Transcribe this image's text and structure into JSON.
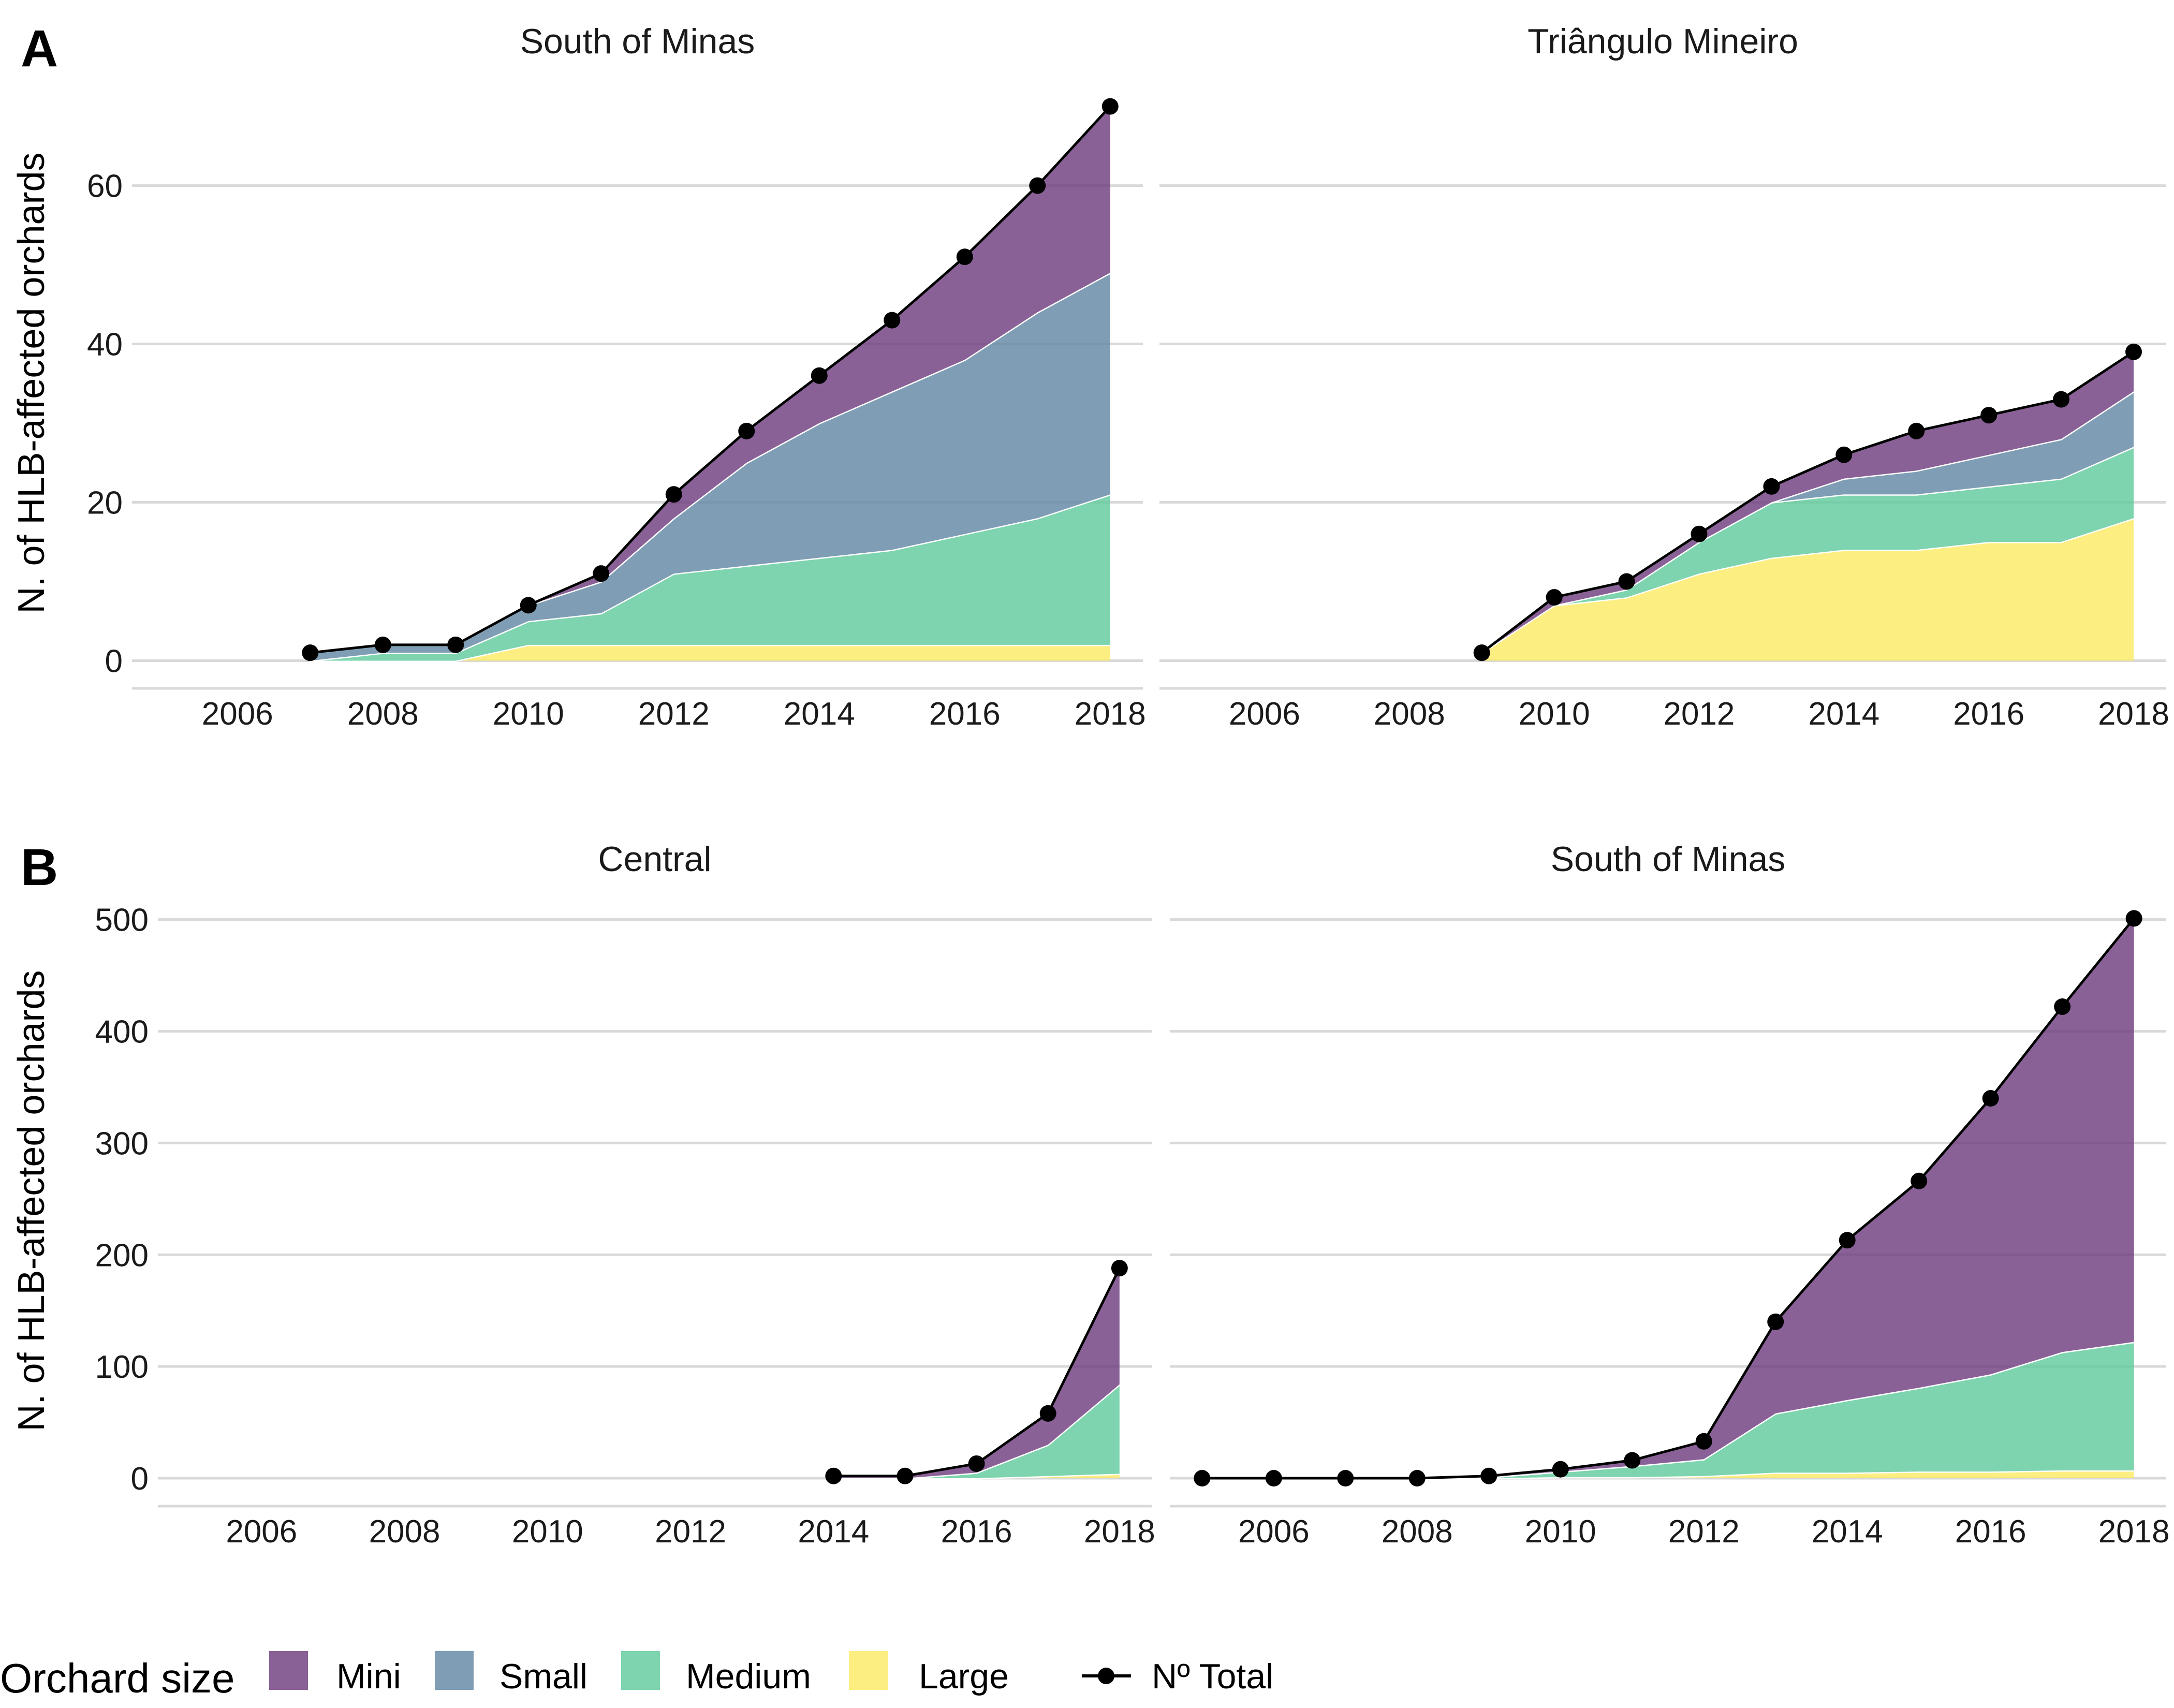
{
  "legend": {
    "title": "Orchard size",
    "items": [
      {
        "key": "mini",
        "label": "Mini",
        "color": "#6B3A7D"
      },
      {
        "key": "small",
        "label": "Small",
        "color": "#5F86A3"
      },
      {
        "key": "medium",
        "label": "Medium",
        "color": "#5CC99A"
      },
      {
        "key": "large",
        "label": "Large",
        "color": "#FBEA61"
      }
    ],
    "total_label": "Nº Total",
    "total_color": "#000000"
  },
  "chart_data": [
    {
      "type": "area",
      "tag": "A",
      "title": "South of Minas",
      "ylabel": "N. of HLB-affected orchards",
      "xlim": [
        2005,
        2018
      ],
      "xticks": [
        2006,
        2008,
        2010,
        2012,
        2014,
        2016,
        2018
      ],
      "ylim": [
        -3.5,
        72
      ],
      "yticks": [
        0,
        20,
        40,
        60
      ],
      "stacked": true,
      "x": [
        2007,
        2008,
        2009,
        2010,
        2011,
        2012,
        2013,
        2014,
        2015,
        2016,
        2017,
        2018
      ],
      "series": [
        {
          "name": "Large",
          "values": [
            0,
            0,
            0,
            2,
            2,
            2,
            2,
            2,
            2,
            2,
            2,
            2
          ]
        },
        {
          "name": "Medium",
          "values": [
            0,
            1,
            1,
            3,
            4,
            9,
            10,
            11,
            12,
            14,
            16,
            19
          ]
        },
        {
          "name": "Small",
          "values": [
            1,
            1,
            1,
            2,
            4,
            7,
            13,
            17,
            20,
            22,
            26,
            28
          ]
        },
        {
          "name": "Mini",
          "values": [
            0,
            0,
            0,
            0,
            1,
            3,
            4,
            6,
            9,
            13,
            16,
            21
          ]
        }
      ],
      "total": [
        1,
        2,
        2,
        7,
        11,
        21,
        29,
        36,
        43,
        51,
        60,
        70
      ]
    },
    {
      "type": "area",
      "tag": "",
      "title": "Triângulo Mineiro",
      "ylabel": "",
      "xlim": [
        2005,
        2018
      ],
      "xticks": [
        2006,
        2008,
        2010,
        2012,
        2014,
        2016,
        2018
      ],
      "ylim": [
        -3.5,
        72
      ],
      "yticks": [
        0,
        20,
        40,
        60
      ],
      "stacked": true,
      "x": [
        2009,
        2010,
        2011,
        2012,
        2013,
        2014,
        2015,
        2016,
        2017,
        2018
      ],
      "series": [
        {
          "name": "Large",
          "values": [
            1,
            7,
            8,
            11,
            13,
            14,
            14,
            15,
            15,
            18
          ]
        },
        {
          "name": "Medium",
          "values": [
            0,
            0,
            1,
            4,
            7,
            7,
            7,
            7,
            8,
            9
          ]
        },
        {
          "name": "Small",
          "values": [
            0,
            0,
            0,
            0,
            0,
            2,
            3,
            4,
            5,
            7
          ]
        },
        {
          "name": "Mini",
          "values": [
            0,
            1,
            1,
            1,
            2,
            3,
            5,
            5,
            5,
            5
          ]
        }
      ],
      "total": [
        1,
        8,
        10,
        16,
        22,
        26,
        29,
        31,
        33,
        39
      ]
    },
    {
      "type": "area",
      "tag": "B",
      "title": "Central",
      "ylabel": "N. of HLB-affected orchards",
      "xlim": [
        2005,
        2018
      ],
      "xticks": [
        2006,
        2008,
        2010,
        2012,
        2014,
        2016,
        2018
      ],
      "ylim": [
        -25,
        510
      ],
      "yticks": [
        0,
        100,
        200,
        300,
        400,
        500
      ],
      "stacked": true,
      "x": [
        2014,
        2015,
        2016,
        2017,
        2018
      ],
      "series": [
        {
          "name": "Large",
          "values": [
            0,
            0,
            0,
            2,
            4
          ]
        },
        {
          "name": "Medium",
          "values": [
            0,
            0,
            5,
            28,
            80
          ]
        },
        {
          "name": "Small",
          "values": [
            0,
            0,
            0,
            0,
            0
          ]
        },
        {
          "name": "Mini",
          "values": [
            2,
            2,
            8,
            28,
            104
          ]
        }
      ],
      "total": [
        2,
        2,
        13,
        58,
        188
      ]
    },
    {
      "type": "area",
      "tag": "",
      "title": "South of Minas",
      "ylabel": "",
      "xlim": [
        2005,
        2018
      ],
      "xticks": [
        2006,
        2008,
        2010,
        2012,
        2014,
        2016,
        2018
      ],
      "ylim": [
        -25,
        510
      ],
      "yticks": [
        0,
        100,
        200,
        300,
        400,
        500
      ],
      "stacked": true,
      "x": [
        2005,
        2006,
        2007,
        2008,
        2009,
        2010,
        2011,
        2012,
        2013,
        2014,
        2015,
        2016,
        2017,
        2018
      ],
      "series": [
        {
          "name": "Large",
          "values": [
            0,
            0,
            0,
            0,
            0,
            1,
            1,
            2,
            5,
            5,
            6,
            6,
            7,
            7
          ]
        },
        {
          "name": "Medium",
          "values": [
            0,
            0,
            0,
            0,
            1,
            5,
            10,
            15,
            53,
            65,
            75,
            87,
            106,
            115
          ]
        },
        {
          "name": "Small",
          "values": [
            0,
            0,
            0,
            0,
            0,
            0,
            0,
            0,
            0,
            0,
            0,
            0,
            0,
            0
          ]
        },
        {
          "name": "Mini",
          "values": [
            0,
            0,
            0,
            0,
            1,
            2,
            5,
            16,
            82,
            143,
            185,
            247,
            309,
            379
          ]
        }
      ],
      "total": [
        0,
        0,
        0,
        0,
        2,
        8,
        16,
        33,
        140,
        213,
        266,
        340,
        422,
        501
      ]
    }
  ]
}
